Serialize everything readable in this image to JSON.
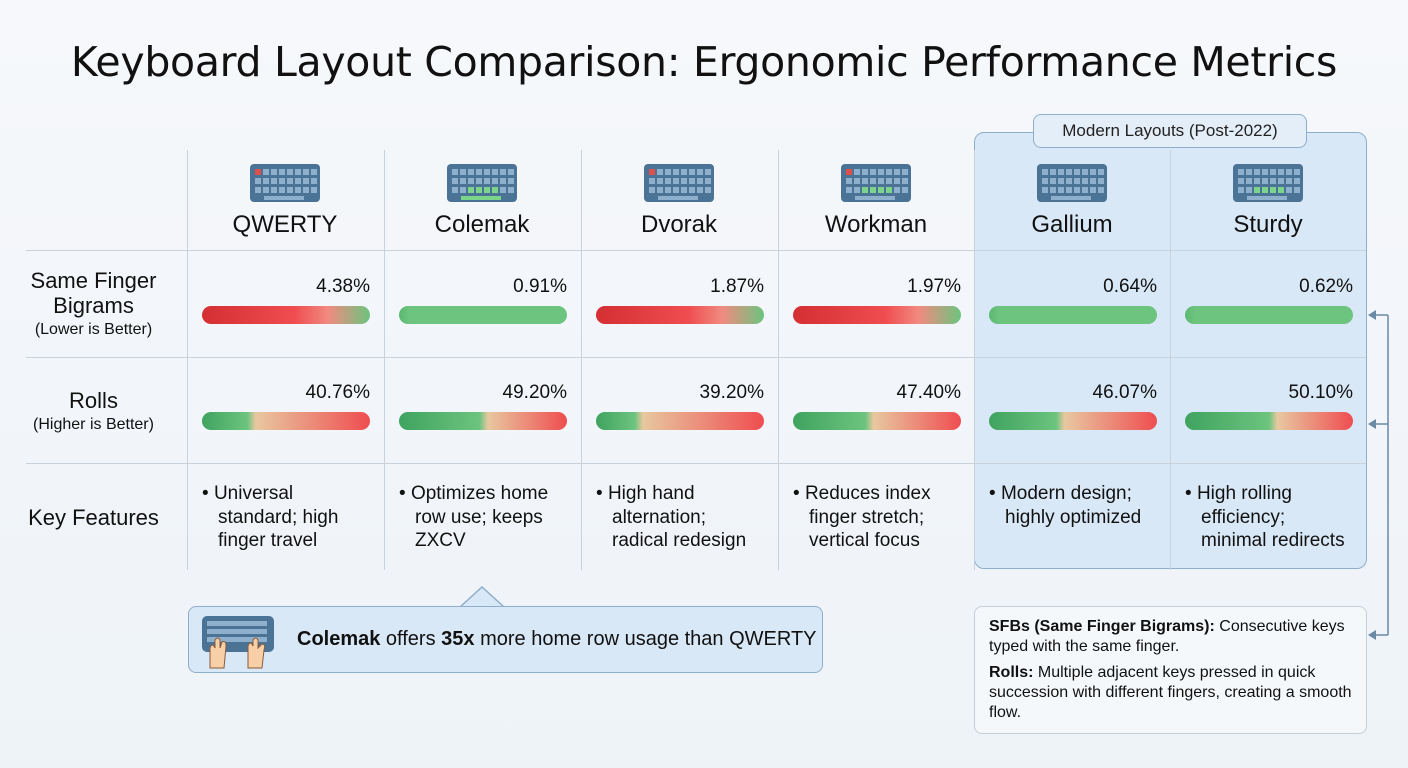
{
  "title": "Keyboard Layout Comparison: Ergonomic Performance Metrics",
  "modern_badge": "Modern Layouts (Post-2022)",
  "rows": {
    "sfb": {
      "label": "Same Finger Bigrams",
      "note": "(Lower is Better)"
    },
    "rolls": {
      "label": "Rolls",
      "note": "(Higher is Better)"
    },
    "features": {
      "label": "Key Features"
    }
  },
  "layouts": [
    {
      "name": "QWERTY",
      "sfb": "4.38%",
      "rolls": "40.76%",
      "feature": "Universal standard; high finger travel",
      "sfb_status": "bad"
    },
    {
      "name": "Colemak",
      "sfb": "0.91%",
      "rolls": "49.20%",
      "feature": "Optimizes home row use; keeps ZXCV",
      "sfb_status": "good"
    },
    {
      "name": "Dvorak",
      "sfb": "1.87%",
      "rolls": "39.20%",
      "feature": "High hand alternation; radical redesign",
      "sfb_status": "bad"
    },
    {
      "name": "Workman",
      "sfb": "1.97%",
      "rolls": "47.40%",
      "feature": "Reduces index finger stretch; vertical focus",
      "sfb_status": "bad"
    },
    {
      "name": "Gallium",
      "sfb": "0.64%",
      "rolls": "46.07%",
      "feature": "Modern design; highly optimized",
      "sfb_status": "good"
    },
    {
      "name": "Sturdy",
      "sfb": "0.62%",
      "rolls": "50.10%",
      "feature": "High rolling efficiency; minimal redirects",
      "sfb_status": "good"
    }
  ],
  "callout": {
    "bold1": "Colemak",
    "t1": " offers ",
    "bold2": "35x",
    "t2": " more home row usage than QWERTY"
  },
  "legend": {
    "sfb_term": "SFBs (Same Finger Bigrams):",
    "sfb_def": " Consecutive keys typed with the same finger.",
    "rolls_term": "Rolls:",
    "rolls_def": " Multiple adjacent keys pressed in quick succession with different fingers, creating a smooth flow."
  },
  "colors": {
    "good": "#6cc47e",
    "bad": "#e0383c",
    "modern_bg": "#d9e8f6",
    "keyboard": "#4a7396"
  }
}
